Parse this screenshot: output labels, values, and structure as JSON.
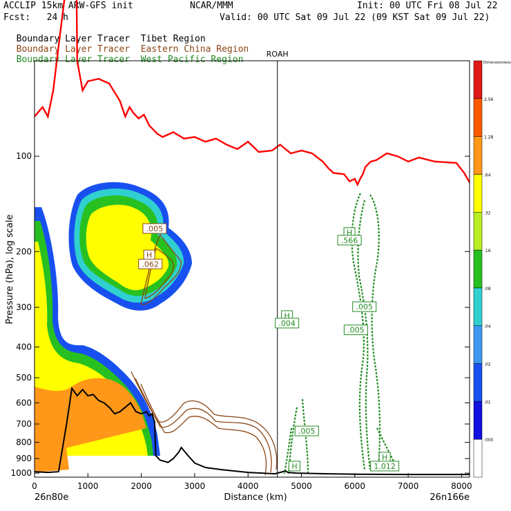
{
  "header": {
    "model": "ACCLIP 15km ARW-GFS init",
    "org": "NCAR/MMM",
    "init": "Init: 00 UTC Fri 08 Jul 22",
    "fcst": "Fcst:   24 h",
    "valid": "Valid: 00 UTC Sat 09 Jul 22 (09 KST Sat 09 Jul 22)"
  },
  "tracers": [
    {
      "prefix": "Boundary Layer Tracer",
      "region": "Tibet Region",
      "color": "#000000"
    },
    {
      "prefix": "Boundary Layer Tracer",
      "region": "Eastern China Region",
      "color": "#8b4513"
    },
    {
      "prefix": "Boundary Layer Tracer",
      "region": "West Pacific Region",
      "color": "#228b22"
    }
  ],
  "chart_data": {
    "type": "cross-section",
    "xlabel": "Distance (km)",
    "ylabel": "Pressure (hPa), log scale",
    "x_ticks": [
      0,
      1000,
      2000,
      3000,
      4000,
      5000,
      6000,
      7000,
      8000
    ],
    "xlim": [
      0,
      8150
    ],
    "y_ticks": [
      100,
      200,
      300,
      400,
      500,
      600,
      700,
      800,
      900,
      1000
    ],
    "ylim": [
      50,
      1030
    ],
    "y_scale": "log",
    "left_endpoint": "26n80e",
    "right_endpoint": "26n166e",
    "marker": {
      "label": "ROAH",
      "x": 4550
    },
    "colorbar": {
      "label": "Dimensionless",
      "levels": [
        ".005",
        ".01",
        ".02",
        ".04",
        ".08",
        ".16",
        ".32",
        ".64",
        "1.28",
        "2.56"
      ],
      "colors": [
        "#ffffff",
        "#1010e0",
        "#1850f0",
        "#3c98f0",
        "#30d0d0",
        "#28c020",
        "#b8ee20",
        "#ffff00",
        "#ff9818",
        "#ff5a00",
        "#e01818"
      ]
    },
    "tropopause_line": {
      "color": "#ff0000",
      "points": [
        [
          0,
          75
        ],
        [
          150,
          70
        ],
        [
          250,
          75
        ],
        [
          350,
          62
        ],
        [
          450,
          45
        ],
        [
          560,
          32
        ],
        [
          640,
          22
        ],
        [
          700,
          12
        ],
        [
          720,
          5
        ],
        [
          760,
          10
        ],
        [
          800,
          50
        ],
        [
          900,
          62
        ],
        [
          1000,
          58
        ],
        [
          1200,
          57
        ],
        [
          1400,
          59
        ],
        [
          1600,
          67
        ],
        [
          1700,
          75
        ],
        [
          1780,
          70
        ],
        [
          1850,
          73
        ],
        [
          1950,
          76
        ],
        [
          2050,
          74
        ],
        [
          2150,
          80
        ],
        [
          2300,
          85
        ],
        [
          2400,
          87
        ],
        [
          2600,
          84
        ],
        [
          2800,
          88
        ],
        [
          3000,
          87
        ],
        [
          3200,
          90
        ],
        [
          3400,
          88
        ],
        [
          3600,
          92
        ],
        [
          3800,
          95
        ],
        [
          4000,
          90
        ],
        [
          4200,
          97
        ],
        [
          4450,
          96
        ],
        [
          4600,
          92
        ],
        [
          4800,
          98
        ],
        [
          5000,
          96
        ],
        [
          5200,
          98
        ],
        [
          5400,
          104
        ],
        [
          5500,
          109
        ],
        [
          5600,
          113
        ],
        [
          5800,
          114
        ],
        [
          5900,
          120
        ],
        [
          6000,
          118
        ],
        [
          6050,
          123
        ],
        [
          6100,
          118
        ],
        [
          6150,
          114
        ],
        [
          6200,
          108
        ],
        [
          6300,
          104
        ],
        [
          6400,
          103
        ],
        [
          6600,
          98
        ],
        [
          6800,
          100
        ],
        [
          7000,
          104
        ],
        [
          7200,
          101
        ],
        [
          7500,
          104
        ],
        [
          7900,
          105
        ],
        [
          8050,
          113
        ],
        [
          8150,
          121
        ]
      ]
    },
    "terrain_line": {
      "color": "#000000",
      "points": [
        [
          0,
          990
        ],
        [
          250,
          995
        ],
        [
          450,
          990
        ],
        [
          600,
          700
        ],
        [
          700,
          540
        ],
        [
          800,
          570
        ],
        [
          900,
          545
        ],
        [
          1000,
          570
        ],
        [
          1100,
          565
        ],
        [
          1200,
          590
        ],
        [
          1300,
          600
        ],
        [
          1400,
          620
        ],
        [
          1500,
          650
        ],
        [
          1600,
          640
        ],
        [
          1700,
          620
        ],
        [
          1800,
          600
        ],
        [
          1900,
          640
        ],
        [
          2000,
          650
        ],
        [
          2100,
          640
        ],
        [
          2150,
          660
        ],
        [
          2200,
          650
        ],
        [
          2250,
          690
        ],
        [
          2270,
          880
        ],
        [
          2350,
          910
        ],
        [
          2500,
          925
        ],
        [
          2600,
          900
        ],
        [
          2700,
          860
        ],
        [
          2750,
          830
        ],
        [
          2800,
          850
        ],
        [
          2850,
          870
        ],
        [
          2900,
          890
        ],
        [
          3000,
          930
        ],
        [
          3200,
          960
        ],
        [
          3500,
          975
        ],
        [
          4000,
          995
        ],
        [
          4500,
          1005
        ],
        [
          4700,
          985
        ],
        [
          4750,
          995
        ],
        [
          4900,
          1000
        ],
        [
          5500,
          1005
        ],
        [
          6000,
          1008
        ],
        [
          7000,
          1010
        ],
        [
          8150,
          1010
        ]
      ]
    },
    "labels": [
      {
        "text": ".005",
        "x": 2250,
        "p": 170,
        "color": "#8b4513"
      },
      {
        "text": "H",
        "x": 2150,
        "p": 206,
        "color": "#8b4513"
      },
      {
        "text": ".062",
        "x": 2170,
        "p": 220,
        "color": "#8b4513"
      },
      {
        "text": "H",
        "x": 4730,
        "p": 320,
        "color": "#228b22"
      },
      {
        "text": ".004",
        "x": 4730,
        "p": 338,
        "color": "#228b22"
      },
      {
        "text": "H",
        "x": 5900,
        "p": 175,
        "color": "#228b22"
      },
      {
        "text": ".566",
        "x": 5900,
        "p": 185,
        "color": "#228b22"
      },
      {
        "text": ".005",
        "x": 6180,
        "p": 300,
        "color": "#228b22"
      },
      {
        "text": ".005",
        "x": 6020,
        "p": 355,
        "color": "#228b22"
      },
      {
        "text": ".005",
        "x": 5100,
        "p": 740,
        "color": "#228b22"
      },
      {
        "text": "H",
        "x": 4870,
        "p": 955,
        "color": "#228b22"
      },
      {
        "text": "H",
        "x": 6560,
        "p": 895,
        "color": "#228b22"
      },
      {
        "text": "1.012",
        "x": 6560,
        "p": 955,
        "color": "#228b22"
      }
    ]
  }
}
